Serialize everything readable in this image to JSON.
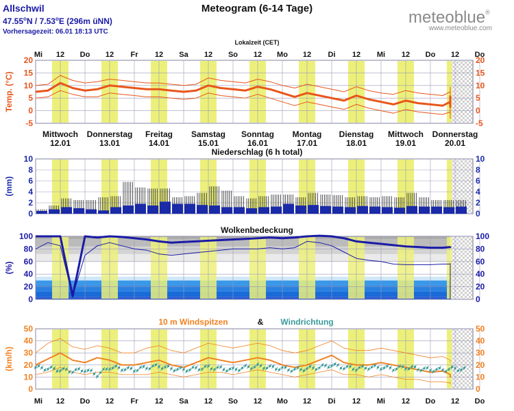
{
  "header": {
    "location": "Allschwil",
    "coords_lat": "47.55",
    "coords_lat_suffix": "N / 7.53",
    "coords_lon_suffix": "E (296m üNN)",
    "degree_mark": "o",
    "forecast_time": "Vorhersagezeit: 06.01  18:13 UTC",
    "title": "Meteogram (6-14 Tage)",
    "brand_name": "meteoblue",
    "brand_reg": "®",
    "brand_url": "www.meteoblue.com",
    "local_time_label": "Lokalzeit (CET)"
  },
  "time_axis": {
    "top_labels": [
      "Mi",
      "12",
      "Do",
      "12",
      "Fr",
      "12",
      "Sa",
      "12",
      "So",
      "12",
      "Mo",
      "12",
      "Di",
      "12",
      "Mi",
      "12",
      "Do",
      "12",
      "Do"
    ],
    "bottom_labels": [
      "Mi",
      "12",
      "Do",
      "12",
      "Fr",
      "12",
      "Sa",
      "12",
      "So",
      "12",
      "Mo",
      "12",
      "Di",
      "12",
      "Mi",
      "12",
      "Do",
      "12",
      "Do"
    ]
  },
  "day_labels": [
    {
      "weekday": "Mittwoch",
      "date": "12.01"
    },
    {
      "weekday": "Donnerstag",
      "date": "13.01"
    },
    {
      "weekday": "Freitag",
      "date": "14.01"
    },
    {
      "weekday": "Samstag",
      "date": "15.01"
    },
    {
      "weekday": "Sonntag",
      "date": "16.01"
    },
    {
      "weekday": "Montag",
      "date": "17.01"
    },
    {
      "weekday": "Dienstag",
      "date": "18.01"
    },
    {
      "weekday": "Mittwoch",
      "date": "19.01"
    },
    {
      "weekday": "Donnerstag",
      "date": "20.01"
    }
  ],
  "colors": {
    "title_blue": "#1a1aa6",
    "temp_red": "#e8551a",
    "precip_blue": "#1a2aa8",
    "cloud_blue": "#1a1aa6",
    "wind_orange": "#f08020",
    "wind_teal": "#3a9a9a",
    "day_yellow": "#ecf07a",
    "grid": "#9a9ab8"
  },
  "chart_data": [
    {
      "type": "line",
      "title": "Temp. (°C)",
      "ylabel": "Temp. (°C)",
      "ylim": [
        -5,
        20
      ],
      "yticks": [
        -5,
        0,
        5,
        10,
        15,
        20
      ],
      "x_hours": [
        0,
        6,
        12,
        18,
        24,
        30,
        36,
        42,
        48,
        54,
        60,
        66,
        72,
        78,
        84,
        90,
        96,
        102,
        108,
        114,
        120,
        126,
        132,
        138,
        144,
        150,
        156,
        162,
        168,
        174,
        180,
        186,
        192,
        198,
        204,
        210,
        216
      ],
      "series": [
        {
          "name": "Temperatur",
          "values": [
            7.5,
            8,
            11,
            9,
            8,
            8.5,
            10,
            9.5,
            9,
            8.5,
            8.5,
            8,
            7.5,
            8,
            10,
            9,
            8.5,
            8,
            9.5,
            8.5,
            7,
            5.5,
            7,
            6,
            5,
            4,
            6,
            4.5,
            3.5,
            2.5,
            4,
            3,
            2.5,
            2,
            3.5,
            1.5,
            6
          ]
        },
        {
          "name": "Temperatur max",
          "values": [
            10,
            10.5,
            14,
            12,
            11,
            11.5,
            12.5,
            12,
            11.5,
            11,
            11,
            10.5,
            10,
            10.5,
            13,
            12,
            11.5,
            11,
            12.5,
            11.5,
            10,
            9,
            10.5,
            9.5,
            8.5,
            7.5,
            9.5,
            8,
            7,
            6.5,
            8,
            7,
            6.5,
            6,
            7.5,
            6,
            9.5
          ]
        },
        {
          "name": "Temperatur min",
          "values": [
            5,
            5.5,
            8,
            6.5,
            5.5,
            5.5,
            7,
            6.5,
            6,
            5.5,
            5.5,
            5,
            4.5,
            5,
            7,
            6,
            5.5,
            5,
            6.5,
            5,
            3.5,
            2,
            3.5,
            2.5,
            1.5,
            0.5,
            2.5,
            1,
            0,
            -1,
            0.5,
            -0.5,
            -1,
            -1.5,
            -0.5,
            -3,
            2
          ]
        }
      ]
    },
    {
      "type": "bar",
      "title": "Niederschlag (6 h total)",
      "ylabel": "(mm)",
      "ylim": [
        0,
        10
      ],
      "yticks": [
        0,
        2,
        4,
        6,
        8,
        10
      ],
      "x_hours": [
        0,
        6,
        12,
        18,
        24,
        30,
        36,
        42,
        48,
        54,
        60,
        66,
        72,
        78,
        84,
        90,
        96,
        102,
        108,
        114,
        120,
        126,
        132,
        138,
        144,
        150,
        156,
        162,
        168,
        174,
        180,
        186,
        192,
        198,
        204
      ],
      "series": [
        {
          "name": "Niederschlag",
          "values": [
            0.5,
            0.8,
            1.2,
            1,
            0.8,
            0.6,
            1.2,
            1.5,
            1.8,
            1.5,
            2.2,
            1.8,
            1.8,
            1.6,
            1.5,
            1.2,
            1.2,
            1,
            1.2,
            1.3,
            1.8,
            1.5,
            1.6,
            1.4,
            1.3,
            1.2,
            1.4,
            1.3,
            1.2,
            1.1,
            1.4,
            1.3,
            1.3,
            1.2,
            1.3
          ]
        },
        {
          "name": "Niederschlag Spannweite",
          "values": [
            0.8,
            1.5,
            2.8,
            2.5,
            2.5,
            3,
            3.2,
            5.8,
            4.8,
            4.6,
            4.6,
            3,
            3.2,
            3.8,
            5,
            4.2,
            3.2,
            2.8,
            3.2,
            3.5,
            3.5,
            3,
            3.8,
            3.5,
            3.4,
            3,
            3.2,
            3,
            3.2,
            3,
            3.8,
            3,
            2.5,
            2.5,
            2.5
          ]
        }
      ]
    },
    {
      "type": "line",
      "title": "Wolkenbedeckung",
      "ylabel": "(%)",
      "ylim": [
        0,
        100
      ],
      "yticks": [
        0,
        20,
        40,
        60,
        80,
        100
      ],
      "x_hours": [
        0,
        6,
        12,
        18,
        24,
        30,
        36,
        42,
        48,
        54,
        60,
        66,
        72,
        78,
        84,
        90,
        96,
        102,
        108,
        114,
        120,
        126,
        132,
        138,
        144,
        150,
        156,
        162,
        168,
        174,
        180,
        186,
        192,
        198,
        204,
        210,
        216
      ],
      "series": [
        {
          "name": "Gesamtbedeckung",
          "values": [
            100,
            100,
            100,
            5,
            100,
            98,
            100,
            99,
            97,
            95,
            92,
            90,
            91,
            92,
            93,
            94,
            95,
            96,
            97,
            98,
            97,
            98,
            100,
            101,
            100,
            97,
            92,
            90,
            88,
            86,
            84,
            83,
            82,
            82,
            83,
            84,
            84
          ]
        },
        {
          "name": "Gesamtbedeckung untere",
          "values": [
            80,
            90,
            85,
            5,
            70,
            85,
            90,
            85,
            80,
            78,
            72,
            70,
            72,
            74,
            76,
            78,
            80,
            80,
            80,
            82,
            80,
            82,
            92,
            90,
            85,
            75,
            65,
            62,
            60,
            56,
            55,
            55,
            55,
            56,
            56,
            57,
            0
          ]
        }
      ]
    },
    {
      "type": "line",
      "title": "10 m Windspitzen & Windrichtung",
      "ylabel": "(km/h)",
      "ylim": [
        0,
        50
      ],
      "yticks": [
        0,
        10,
        20,
        30,
        40,
        50
      ],
      "legend": [
        "10 m Windspitzen",
        "&",
        "Windrichtung"
      ],
      "x_hours": [
        0,
        6,
        12,
        18,
        24,
        30,
        36,
        42,
        48,
        54,
        60,
        66,
        72,
        78,
        84,
        90,
        96,
        102,
        108,
        114,
        120,
        126,
        132,
        138,
        144,
        150,
        156,
        162,
        168,
        174,
        180,
        186,
        192,
        198,
        204,
        210,
        216
      ],
      "series": [
        {
          "name": "Windspitzen",
          "values": [
            20,
            25,
            30,
            24,
            22,
            26,
            24,
            20,
            20,
            22,
            24,
            20,
            18,
            22,
            26,
            24,
            22,
            24,
            26,
            24,
            20,
            18,
            20,
            24,
            28,
            22,
            20,
            20,
            22,
            20,
            18,
            16,
            14,
            15,
            12,
            10,
            12
          ]
        },
        {
          "name": "Windspitzen max",
          "values": [
            30,
            38,
            42,
            35,
            33,
            36,
            34,
            30,
            30,
            34,
            36,
            32,
            30,
            34,
            38,
            36,
            34,
            36,
            38,
            36,
            32,
            30,
            32,
            36,
            40,
            34,
            32,
            32,
            34,
            32,
            30,
            28,
            26,
            27,
            24,
            22,
            24
          ]
        },
        {
          "name": "Windspitzen min",
          "values": [
            12,
            14,
            18,
            14,
            12,
            14,
            14,
            12,
            12,
            12,
            14,
            12,
            10,
            12,
            14,
            14,
            12,
            14,
            16,
            14,
            12,
            10,
            12,
            14,
            16,
            12,
            12,
            10,
            12,
            10,
            8,
            8,
            6,
            6,
            5,
            4,
            6
          ]
        },
        {
          "name": "Windrichtung",
          "values": [
            18,
            17,
            16,
            15,
            16,
            12,
            18,
            17,
            16,
            18,
            19,
            17,
            16,
            17,
            18,
            17,
            16,
            18,
            19,
            18,
            17,
            16,
            17,
            18,
            20,
            18,
            17,
            18,
            18,
            17,
            18,
            17,
            16,
            16,
            17,
            16,
            17
          ]
        }
      ]
    }
  ]
}
